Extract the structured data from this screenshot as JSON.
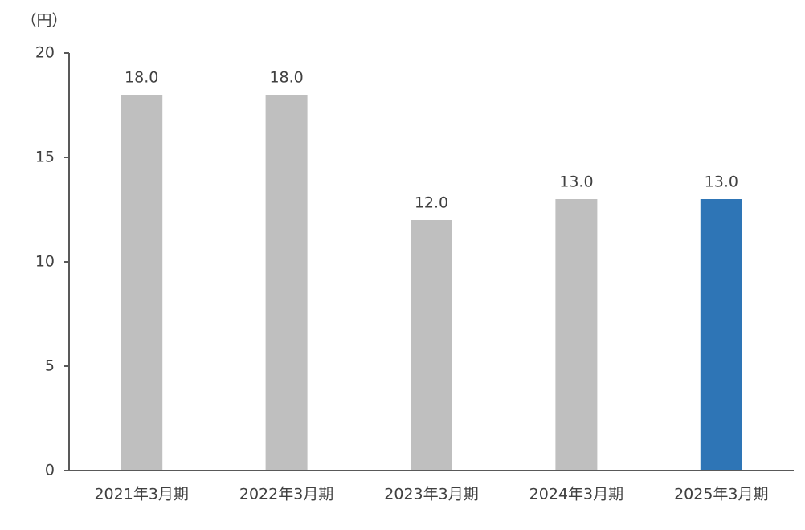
{
  "chart_data": {
    "type": "bar",
    "y_axis_label": "（円）",
    "categories": [
      "2021年3月期",
      "2022年3月期",
      "2023年3月期",
      "2024年3月期",
      "2025年3月期"
    ],
    "values": [
      18,
      18,
      12,
      13,
      13
    ],
    "value_labels": [
      "18.0",
      "18.0",
      "12.0",
      "13.0",
      "13.0"
    ],
    "colors": [
      "#bfbfbf",
      "#bfbfbf",
      "#bfbfbf",
      "#bfbfbf",
      "#2e75b6"
    ],
    "ylim": [
      0,
      20
    ],
    "yticks": [
      0,
      5,
      10,
      15,
      20
    ],
    "grid": false
  }
}
